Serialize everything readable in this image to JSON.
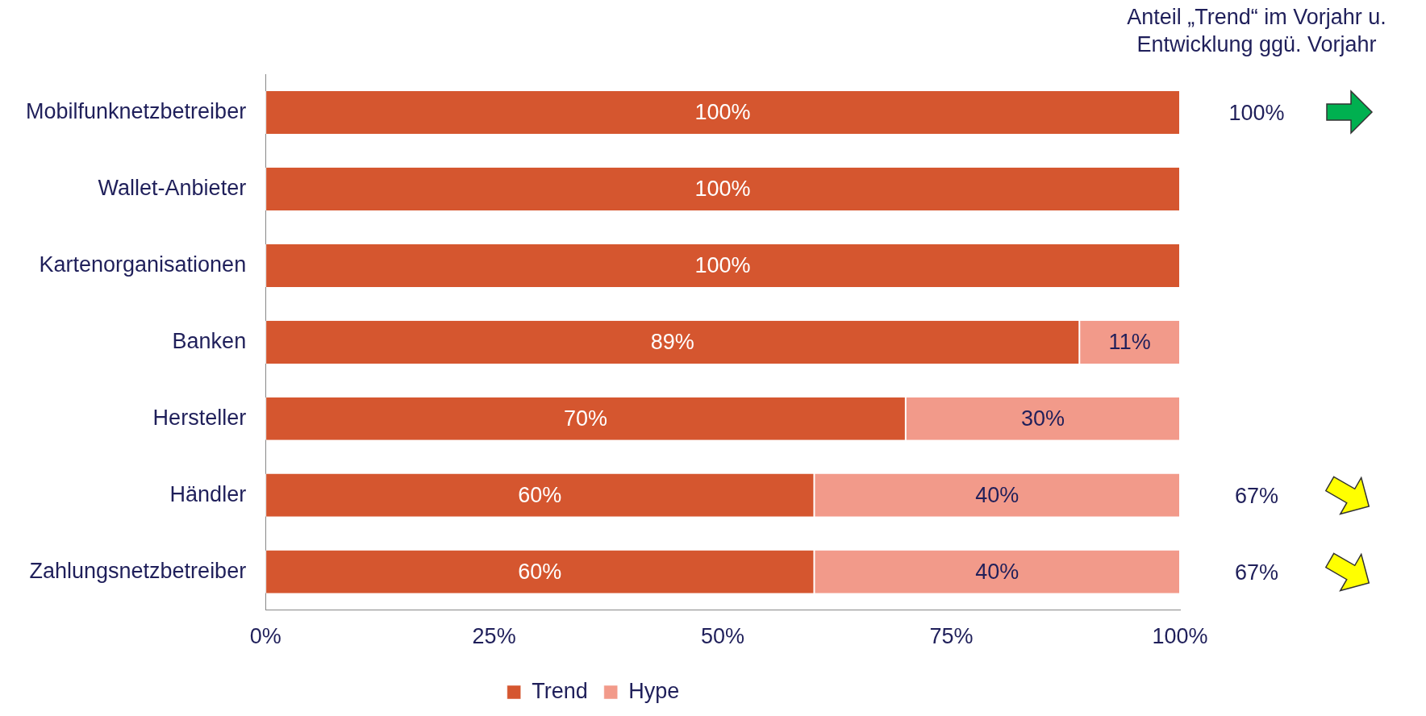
{
  "chart_data": {
    "type": "bar",
    "orientation": "horizontal",
    "stacked": true,
    "categories": [
      "Mobilfunknetzbetreiber",
      "Wallet-Anbieter",
      "Kartenorganisationen",
      "Banken",
      "Hersteller",
      "Händler",
      "Zahlungsnetzbetreiber"
    ],
    "series": [
      {
        "name": "Trend",
        "color": "#d5562f",
        "values": [
          100,
          100,
          100,
          89,
          70,
          60,
          60
        ],
        "value_labels": [
          "100%",
          "100%",
          "100%",
          "89%",
          "70%",
          "60%",
          "60%"
        ]
      },
      {
        "name": "Hype",
        "color": "#f29a8a",
        "values": [
          0,
          0,
          0,
          11,
          30,
          40,
          40
        ],
        "value_labels": [
          null,
          null,
          null,
          "11%",
          "30%",
          "40%",
          "40%"
        ]
      }
    ],
    "xlim": [
      0,
      100
    ],
    "xticks": [
      {
        "value": 0,
        "label": "0%"
      },
      {
        "value": 25,
        "label": "25%"
      },
      {
        "value": 50,
        "label": "50%"
      },
      {
        "value": 75,
        "label": "75%"
      },
      {
        "value": 100,
        "label": "100%"
      }
    ],
    "grid": false,
    "legend": "bottom",
    "annotations": [
      "Anteil „Trend“ im Vorjahr u. Entwicklung ggü. Vorjahr",
      "100%",
      "67%",
      "67%"
    ]
  }
}
